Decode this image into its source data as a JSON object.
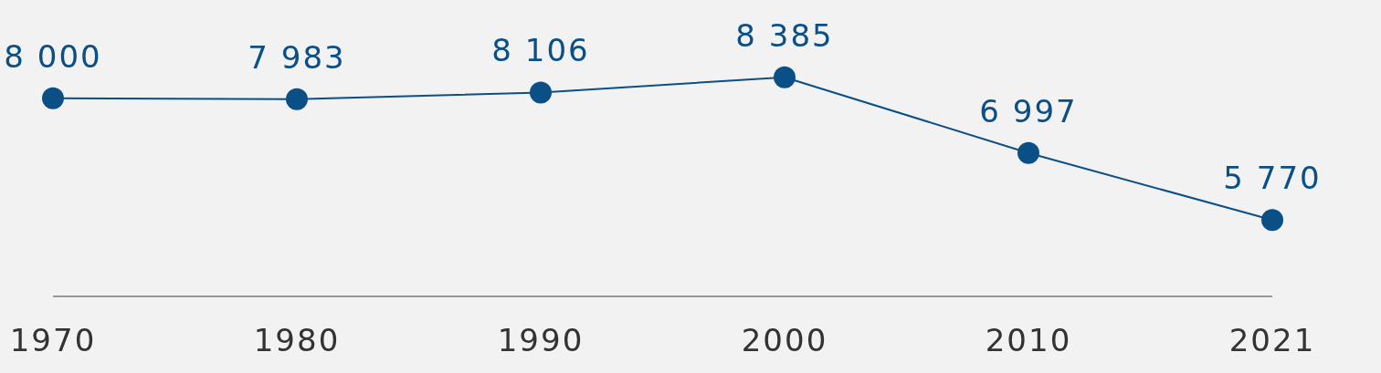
{
  "chart_data": {
    "type": "line",
    "categories": [
      "1970",
      "1980",
      "1990",
      "2000",
      "2010",
      "2021"
    ],
    "series": [
      {
        "color": "#0b4f87",
        "values": [
          8000,
          7983,
          8106,
          8385,
          6997,
          5770
        ],
        "value_labels": [
          "8 000",
          "7 983",
          "8 106",
          "8 385",
          "6 997",
          "5 770"
        ]
      }
    ],
    "ylim": [
      4370,
      9800
    ],
    "tick_labels": "x",
    "marker": "circle",
    "line_style": "solid"
  }
}
